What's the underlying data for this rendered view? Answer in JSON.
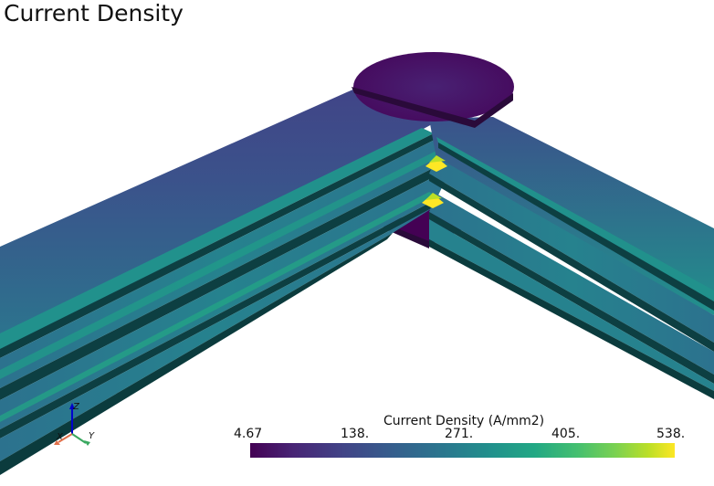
{
  "viewport": {
    "title": "Current Density",
    "colorbar": {
      "title": "Current Density (A/mm2)",
      "ticks": [
        "4.67",
        "138.",
        "271.",
        "405.",
        "538."
      ],
      "min": 4.67,
      "max": 538,
      "colormap": "viridis"
    },
    "axes": {
      "z": "Z",
      "x": "X",
      "y": "Y"
    },
    "colors": {
      "background": "#ffffff",
      "low": "#440154",
      "mid": "#21918c",
      "high": "#fde725",
      "side_face": "#0b3b3d"
    }
  }
}
